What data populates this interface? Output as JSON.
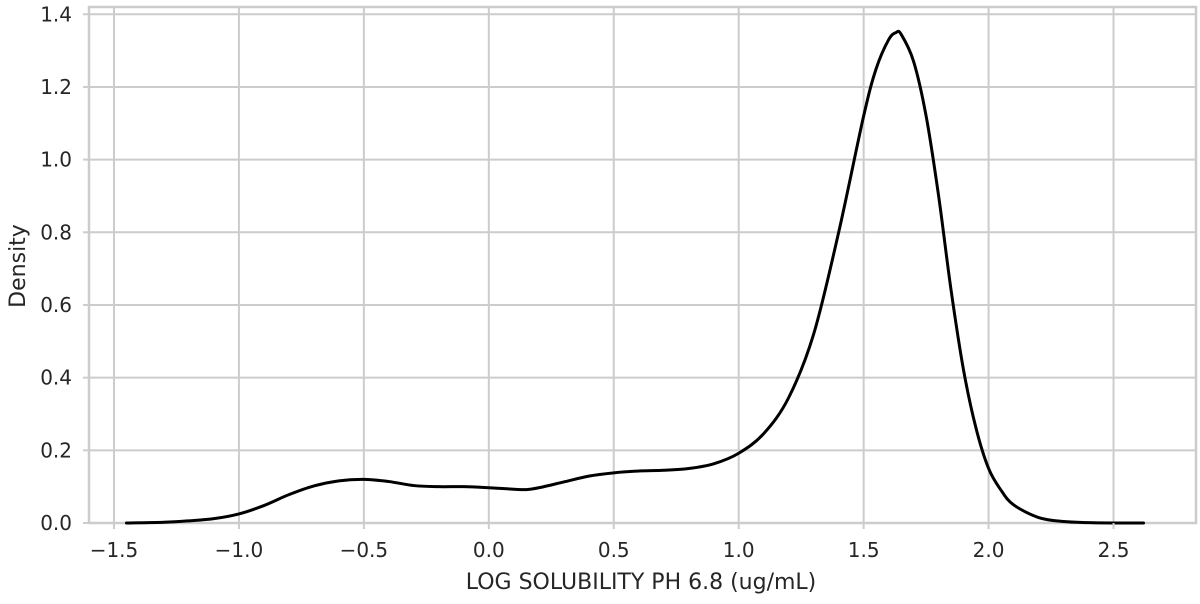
{
  "chart_data": {
    "type": "line",
    "title": "",
    "xlabel": "LOG SOLUBILITY PH 6.8 (ug/mL)",
    "ylabel": "Density",
    "xlim": [
      -1.6,
      2.83
    ],
    "ylim": [
      0,
      1.42
    ],
    "x_ticks": [
      -1.5,
      -1.0,
      -0.5,
      0.0,
      0.5,
      1.0,
      1.5,
      2.0,
      2.5
    ],
    "x_tick_labels": [
      "−1.5",
      "−1.0",
      "−0.5",
      "0.0",
      "0.5",
      "1.0",
      "1.5",
      "2.0",
      "2.5"
    ],
    "y_ticks": [
      0.0,
      0.2,
      0.4,
      0.6,
      0.8,
      1.0,
      1.2,
      1.4
    ],
    "y_tick_labels": [
      "0.0",
      "0.2",
      "0.4",
      "0.6",
      "0.8",
      "1.0",
      "1.2",
      "1.4"
    ],
    "grid": true,
    "line_color": "#000000",
    "series": [
      {
        "x": [
          -1.45,
          -1.3,
          -1.2,
          -1.1,
          -1.0,
          -0.9,
          -0.8,
          -0.7,
          -0.6,
          -0.5,
          -0.4,
          -0.3,
          -0.2,
          -0.1,
          0.0,
          0.1,
          0.15,
          0.2,
          0.3,
          0.4,
          0.5,
          0.6,
          0.7,
          0.8,
          0.9,
          1.0,
          1.1,
          1.2,
          1.3,
          1.4,
          1.5,
          1.55,
          1.6,
          1.63,
          1.65,
          1.7,
          1.75,
          1.8,
          1.85,
          1.9,
          1.95,
          2.0,
          2.05,
          2.1,
          2.2,
          2.3,
          2.4,
          2.5,
          2.62
        ],
        "y": [
          0.0,
          0.002,
          0.006,
          0.012,
          0.025,
          0.048,
          0.078,
          0.102,
          0.116,
          0.12,
          0.114,
          0.103,
          0.1,
          0.1,
          0.097,
          0.093,
          0.092,
          0.097,
          0.113,
          0.129,
          0.138,
          0.143,
          0.145,
          0.15,
          0.163,
          0.192,
          0.246,
          0.345,
          0.52,
          0.8,
          1.12,
          1.25,
          1.33,
          1.35,
          1.345,
          1.27,
          1.12,
          0.9,
          0.64,
          0.42,
          0.26,
          0.15,
          0.09,
          0.05,
          0.015,
          0.004,
          0.001,
          0.0,
          0.0
        ]
      }
    ]
  }
}
